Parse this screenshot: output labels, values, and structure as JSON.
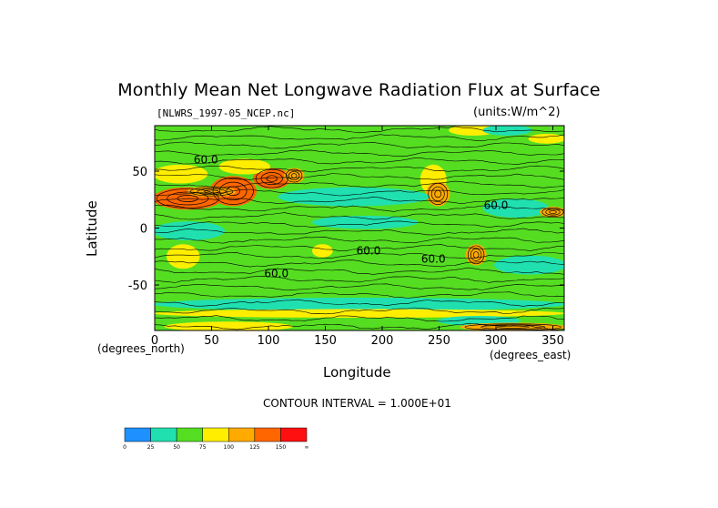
{
  "chart_data": {
    "type": "heatmap",
    "title": "Monthly Mean Net Longwave Radiation Flux at Surface",
    "file_label": "[NLWRS_1997-05_NCEP.nc]",
    "units_label": "(units:W/m^2)",
    "xlabel": "Longitude",
    "ylabel": "Latitude",
    "x_unit_label": "(degrees_east)",
    "y_unit_label": "(degrees_north)",
    "xlim": [
      0,
      360
    ],
    "ylim": [
      -90,
      90
    ],
    "x_ticks": [
      "0",
      "50",
      "100",
      "150",
      "200",
      "250",
      "300",
      "350"
    ],
    "x_tick_values": [
      0,
      50,
      100,
      150,
      200,
      250,
      300,
      350
    ],
    "y_ticks": [
      "50",
      "0",
      "-50"
    ],
    "y_tick_values": [
      50,
      0,
      -50
    ],
    "contour_interval_text": "CONTOUR INTERVAL = 1.000E+01",
    "contour_labels": [
      {
        "text": "60.0",
        "lon": 45,
        "lat": 60
      },
      {
        "text": "60.0",
        "lon": 300,
        "lat": 20
      },
      {
        "text": "60.0",
        "lon": 188,
        "lat": -20
      },
      {
        "text": "60.0",
        "lon": 245,
        "lat": -27
      },
      {
        "text": "60.0",
        "lon": 107,
        "lat": -40
      }
    ],
    "colorbar": {
      "colors": [
        "#1e90ff",
        "#20e0b0",
        "#55dd22",
        "#ffee00",
        "#ffaa00",
        "#ff6600",
        "#ff1010"
      ],
      "labels": [
        "0",
        "25",
        "50",
        "75",
        "100",
        "125",
        "150",
        "∞"
      ]
    },
    "background_color": "#55dd22",
    "regions": [
      {
        "lon": [
          0,
          58
        ],
        "lat": [
          17,
          35
        ],
        "color": "#ff6600"
      },
      {
        "lon": [
          50,
          88
        ],
        "lat": [
          20,
          45
        ],
        "color": "#ff6600"
      },
      {
        "lon": [
          88,
          118
        ],
        "lat": [
          35,
          52
        ],
        "color": "#ff6600"
      },
      {
        "lon": [
          0,
          45
        ],
        "lat": [
          40,
          55
        ],
        "color": "#ffee00"
      },
      {
        "lon": [
          58,
          100
        ],
        "lat": [
          48,
          60
        ],
        "color": "#ffee00"
      },
      {
        "lon": [
          30,
          70
        ],
        "lat": [
          28,
          36
        ],
        "color": "#ffaa00"
      },
      {
        "lon": [
          115,
          130
        ],
        "lat": [
          40,
          52
        ],
        "color": "#ffaa00"
      },
      {
        "lon": [
          235,
          255
        ],
        "lat": [
          30,
          55
        ],
        "color": "#ffee00"
      },
      {
        "lon": [
          240,
          258
        ],
        "lat": [
          20,
          40
        ],
        "color": "#ffaa00"
      },
      {
        "lon": [
          275,
          290
        ],
        "lat": [
          -32,
          -15
        ],
        "color": "#ffaa00"
      },
      {
        "lon": [
          12,
          38
        ],
        "lat": [
          -35,
          -15
        ],
        "color": "#ffee00"
      },
      {
        "lon": [
          140,
          155
        ],
        "lat": [
          -25,
          -15
        ],
        "color": "#ffee00"
      },
      {
        "lon": [
          110,
          240
        ],
        "lat": [
          20,
          35
        ],
        "color": "#20e0b0"
      },
      {
        "lon": [
          140,
          230
        ],
        "lat": [
          0,
          10
        ],
        "color": "#20e0b0"
      },
      {
        "lon": [
          290,
          345
        ],
        "lat": [
          10,
          25
        ],
        "color": "#20e0b0"
      },
      {
        "lon": [
          0,
          60
        ],
        "lat": [
          -10,
          5
        ],
        "color": "#20e0b0"
      },
      {
        "lon": [
          300,
          360
        ],
        "lat": [
          -40,
          -25
        ],
        "color": "#20e0b0"
      },
      {
        "lon": [
          0,
          360
        ],
        "lat": [
          -72,
          -62
        ],
        "color": "#20e0b0"
      },
      {
        "lon": [
          0,
          360
        ],
        "lat": [
          -78,
          -72
        ],
        "color": "#ffee00"
      },
      {
        "lon": [
          250,
          320
        ],
        "lat": [
          -85,
          -78
        ],
        "color": "#20e0b0"
      },
      {
        "lon": [
          10,
          120
        ],
        "lat": [
          -90,
          -83
        ],
        "color": "#ffee00"
      },
      {
        "lon": [
          270,
          360
        ],
        "lat": [
          -90,
          -84
        ],
        "color": "#ffaa00"
      },
      {
        "lon": [
          260,
          300
        ],
        "lat": [
          82,
          90
        ],
        "color": "#ffee00"
      },
      {
        "lon": [
          330,
          360
        ],
        "lat": [
          75,
          82
        ],
        "color": "#ffee00"
      },
      {
        "lon": [
          340,
          360
        ],
        "lat": [
          10,
          18
        ],
        "color": "#ffaa00"
      },
      {
        "lon": [
          290,
          330
        ],
        "lat": [
          82,
          90
        ],
        "color": "#20e0b0"
      }
    ]
  }
}
